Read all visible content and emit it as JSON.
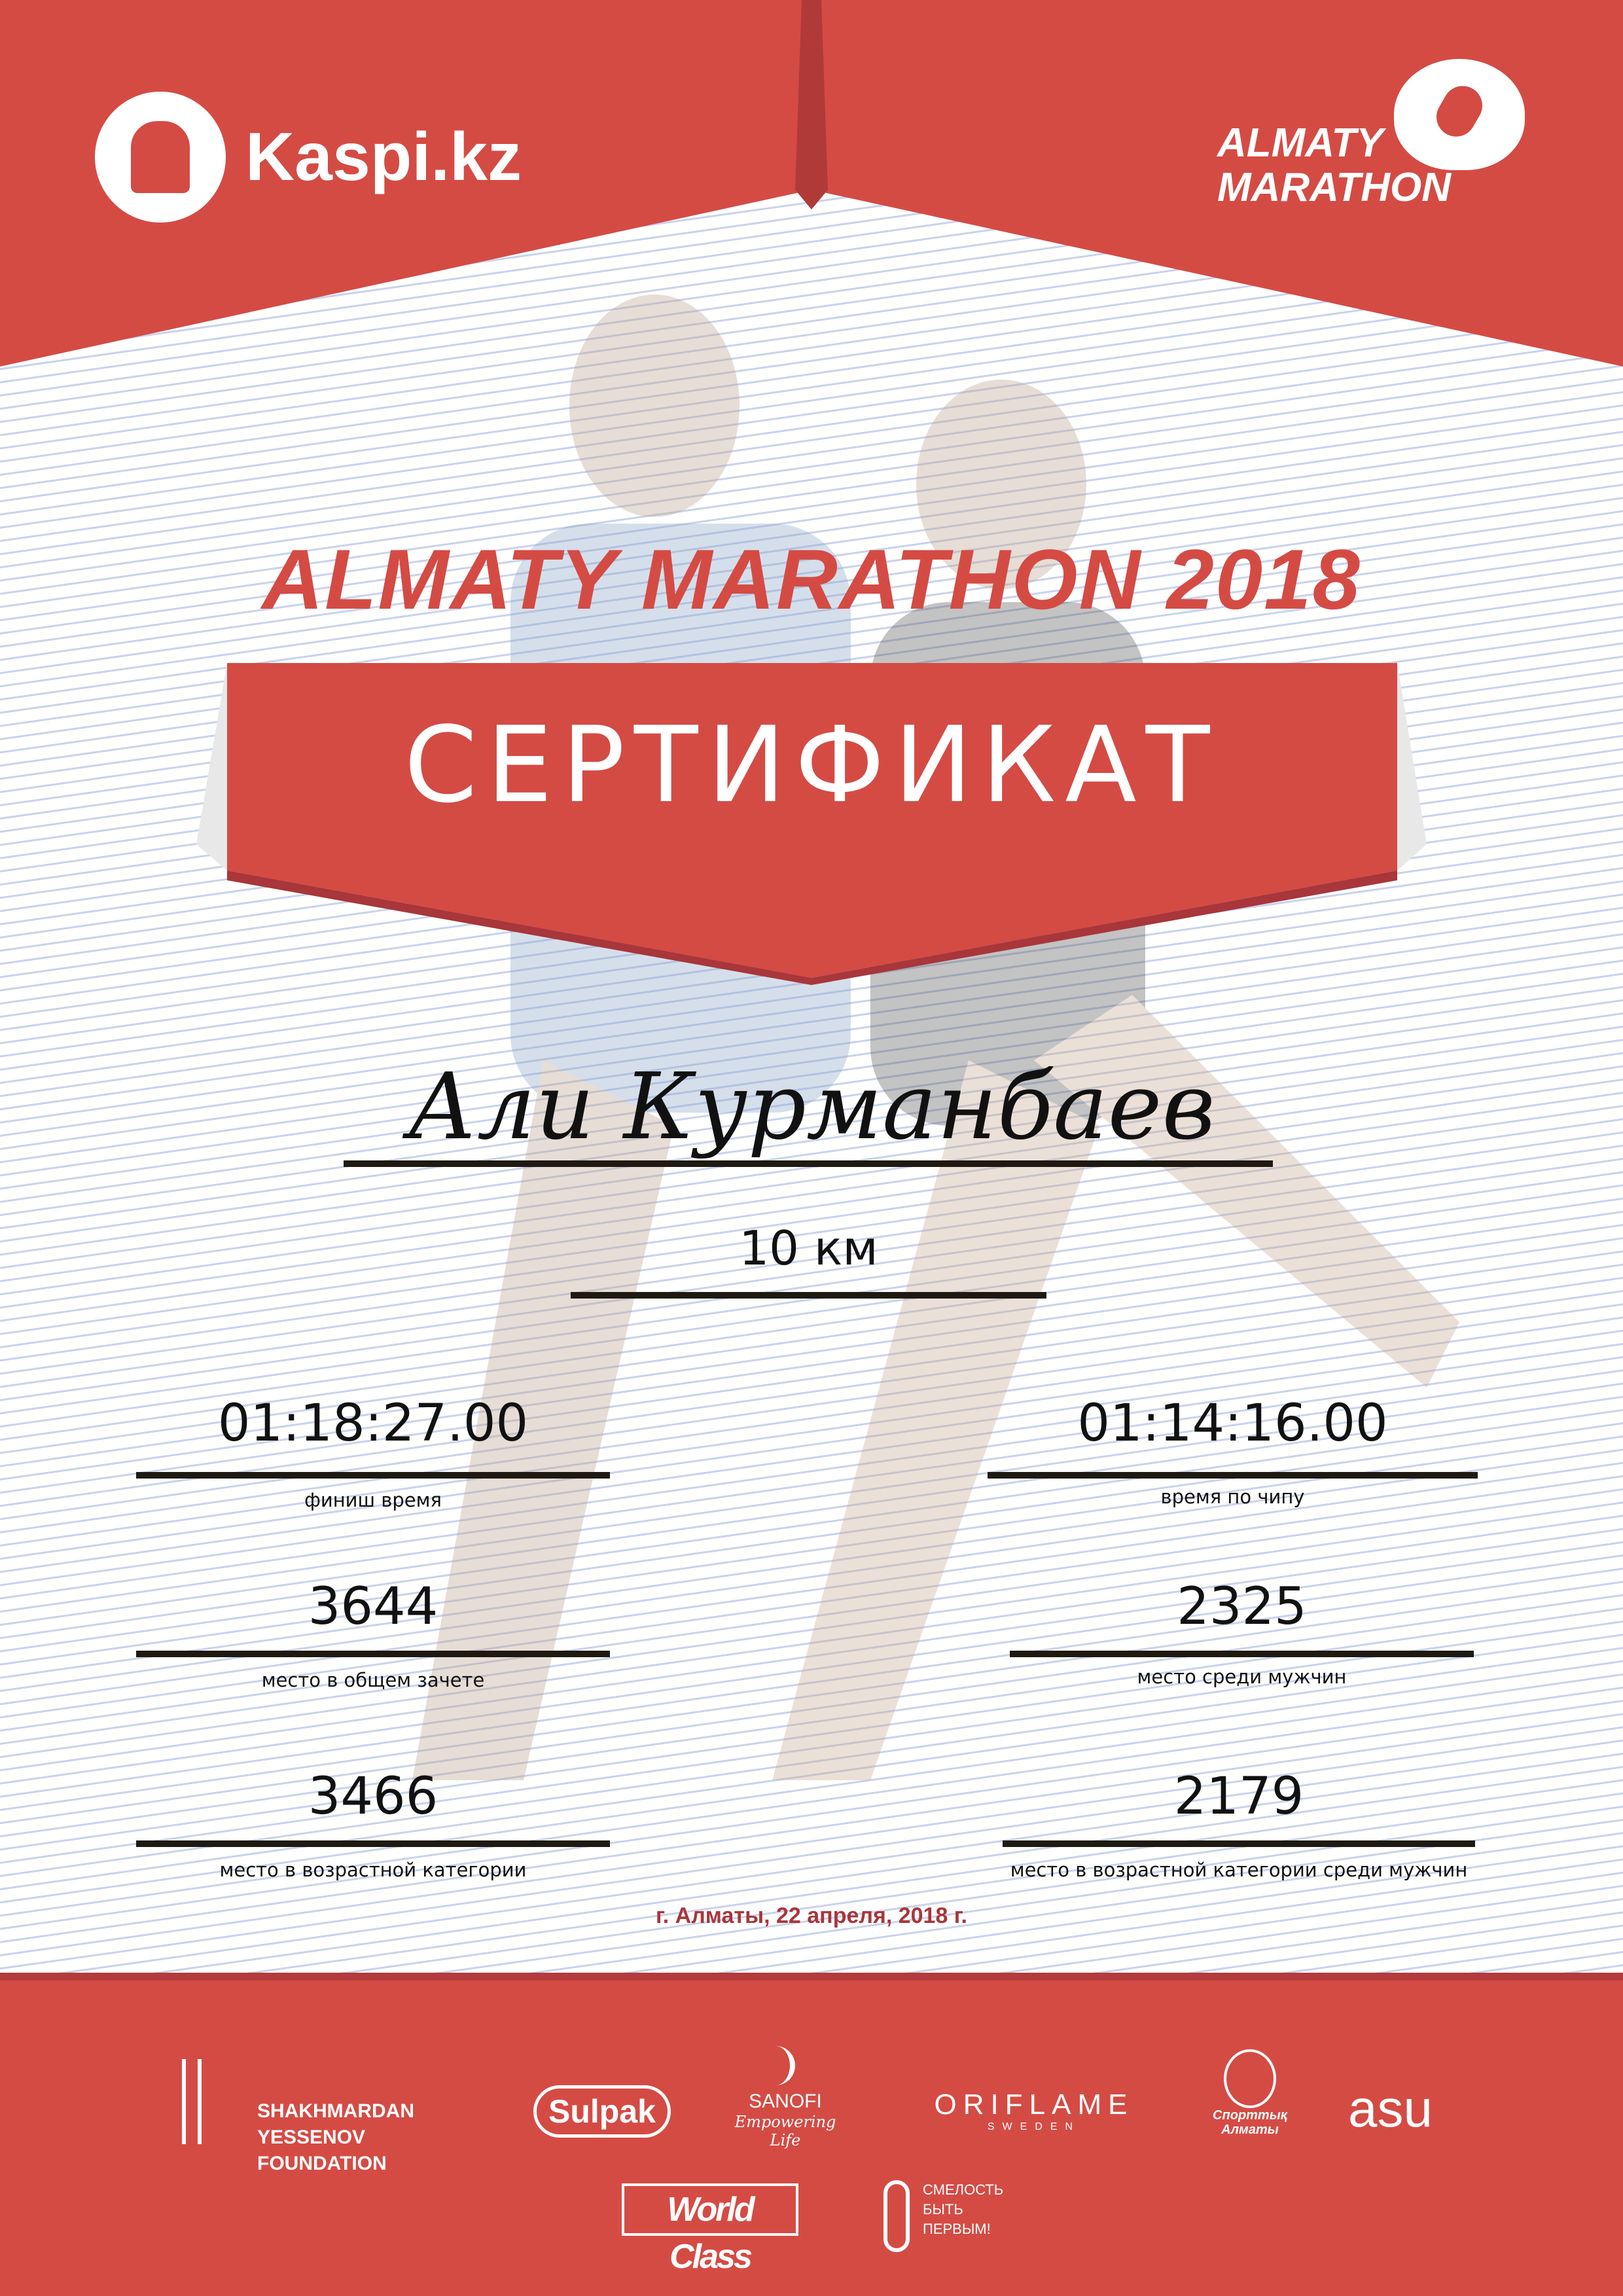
{
  "header": {
    "kaspi_logo": "Kaspi.kz",
    "event_logo_line1": "ALMATY",
    "event_logo_line2": "MARATHON"
  },
  "title": "ALMATY MARATHON 2018",
  "certificate_label": "СЕРТИФИКАТ",
  "participant_name": "Али Курманбаев",
  "distance": "10 км",
  "results": {
    "finish_time": {
      "value": "01:18:27.00",
      "label": "финиш время"
    },
    "chip_time": {
      "value": "01:14:16.00",
      "label": "время по чипу"
    },
    "overall_place": {
      "value": "3644",
      "label": "место в общем зачете"
    },
    "gender_place": {
      "value": "2325",
      "label": "место среди мужчин"
    },
    "age_place": {
      "value": "3466",
      "label": "место в возрастной категории"
    },
    "age_gender_place": {
      "value": "2179",
      "label": "место в возрастной категории среди мужчин"
    }
  },
  "date_place": "г. Алматы, 22 апреля, 2018 г.",
  "sponsors": {
    "yessenov_line1": "SHAKHMARDAN YESSENOV",
    "yessenov_line2": "FOUNDATION",
    "sulpak": "Sulpak",
    "sanofi": "SANOFI",
    "sanofi_tagline": "Empowering Life",
    "oriflame": "ORIFLAME",
    "oriflame_sub": "SWEDEN",
    "sport_almaty": "Спорттық Алматы",
    "asu": "asu",
    "world_class": "World Class",
    "fund_line1": "СМЕЛОСТЬ",
    "fund_line2": "БЫТЬ",
    "fund_line3": "ПЕРВЫМ!"
  },
  "colors": {
    "brand_red": "#d44b44",
    "dark_red": "#a8363a",
    "line": "#1e1a12"
  }
}
